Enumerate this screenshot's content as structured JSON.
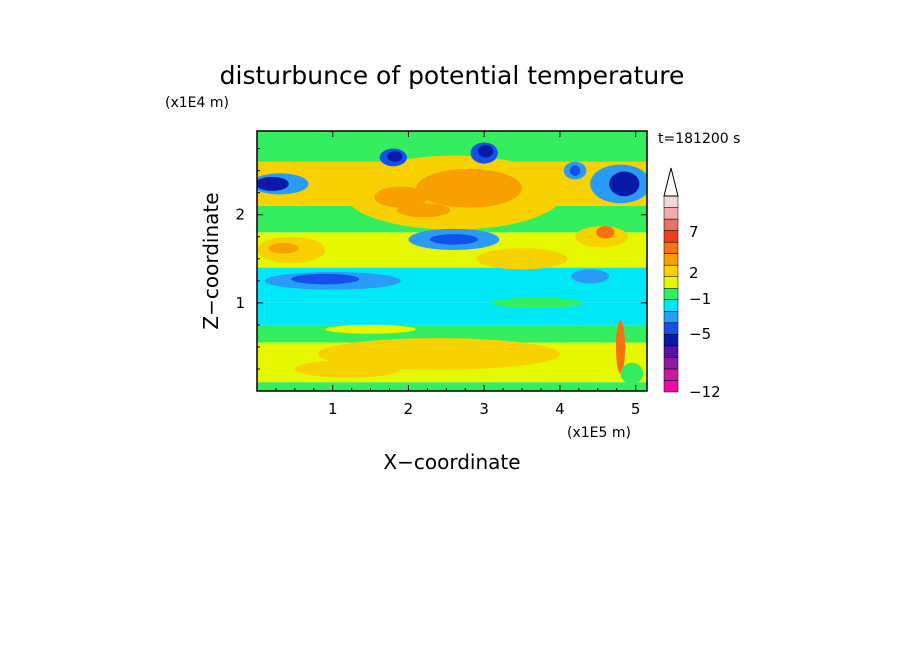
{
  "chart_data": {
    "type": "heatmap",
    "title": "disturbunce of potential temperature",
    "xlabel": "X−coordinate",
    "ylabel": "Z−coordinate",
    "x_unit": "(x1E5 m)",
    "y_unit": "(x1E4 m)",
    "time_label": "t=181200 s",
    "xlim": [
      0,
      5.15
    ],
    "ylim": [
      0,
      2.95
    ],
    "x_ticks": [
      1,
      2,
      3,
      4,
      5
    ],
    "x_tick_labels": [
      "1",
      "2",
      "3",
      "4",
      "5"
    ],
    "y_ticks": [
      1,
      2
    ],
    "y_tick_labels": [
      "1",
      "2"
    ],
    "colorbar": {
      "colors": [
        "#ee0aa8",
        "#c81aa0",
        "#8a1aa0",
        "#5a14a4",
        "#0a1aa8",
        "#1450ec",
        "#2a9cf8",
        "#00e8f8",
        "#34ee60",
        "#e6f800",
        "#f8d200",
        "#f8a000",
        "#f87010",
        "#f03c1a",
        "#ea7068",
        "#f2aaaa",
        "#f4d6d6"
      ],
      "tick_labels": [
        "7",
        "2",
        "−1",
        "−5",
        "−12"
      ],
      "tick_values": [
        7,
        2,
        -1,
        -5,
        -12
      ],
      "extend": "max"
    },
    "colors": {
      "deep_blue": "#0a1aa8",
      "blue": "#1450ec",
      "light_blue": "#2a9cf8",
      "cyan": "#00e8f8",
      "green": "#34ee60",
      "yellow": "#e6f800",
      "gold": "#f8d200",
      "orange": "#f8a000",
      "dark_orange": "#f87010",
      "red": "#f03c1a"
    }
  }
}
